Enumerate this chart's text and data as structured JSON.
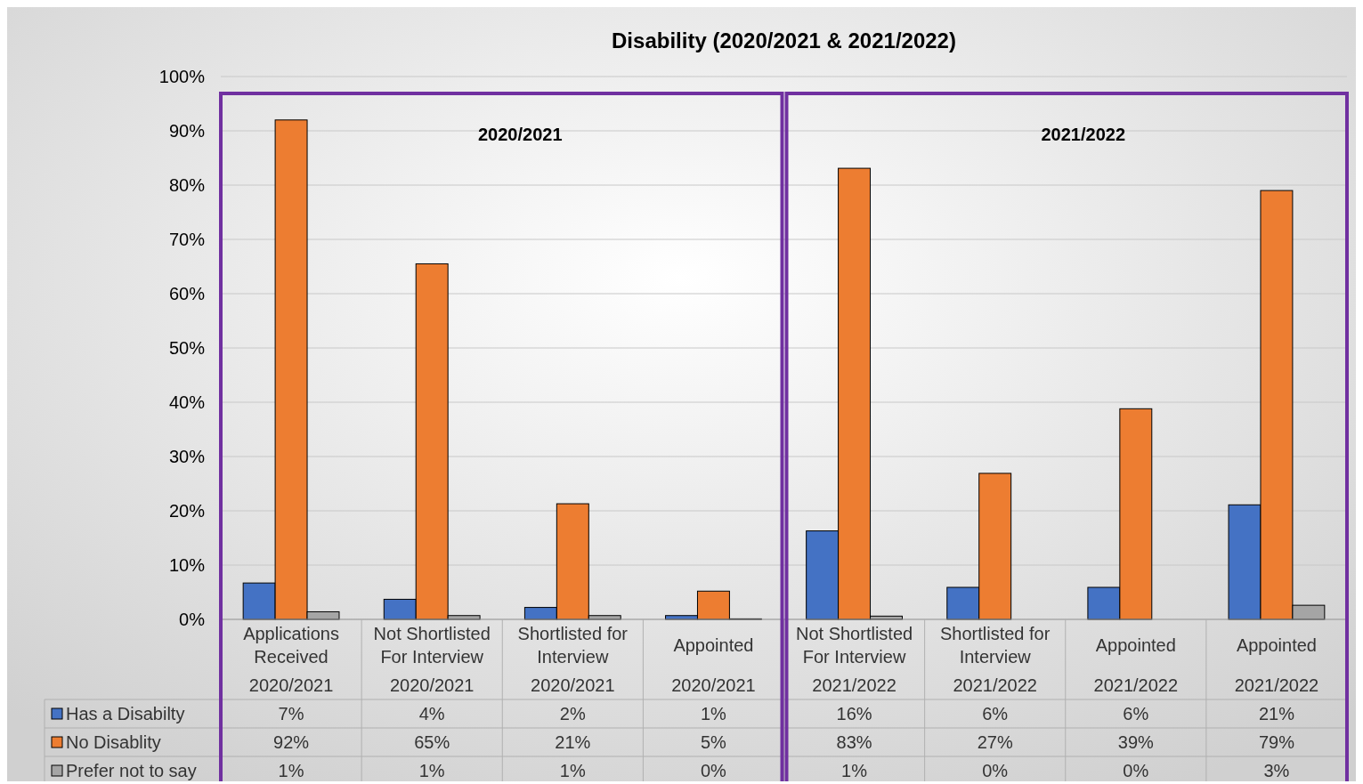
{
  "chart_data": {
    "type": "bar",
    "title": "Disability (2020/2021 & 2021/2022)",
    "categories": [
      "Applications Received 2020/2021",
      "Not Shortlisted For Interview 2020/2021",
      "Shortlisted for Interview 2020/2021",
      "Appointed 2020/2021",
      "Not Shortlisted For Interview 2021/2022",
      "Shortlisted for Interview 2021/2022",
      "Appointed 2021/2022",
      "Appointed 2021/2022"
    ],
    "series": [
      {
        "name": "Has a Disabilty",
        "color": "#4472c4",
        "values": [
          6.7,
          3.7,
          2.2,
          0.7,
          16.3,
          5.9,
          5.9,
          21.1
        ],
        "value_labels": [
          "7%",
          "4%",
          "2%",
          "1%",
          "16%",
          "6%",
          "6%",
          "21%"
        ]
      },
      {
        "name": "No Disablity",
        "color": "#ed7d31",
        "values": [
          92.0,
          65.5,
          21.3,
          5.2,
          83.1,
          26.9,
          38.8,
          79.0
        ],
        "value_labels": [
          "92%",
          "65%",
          "21%",
          "5%",
          "83%",
          "27%",
          "39%",
          "79%"
        ]
      },
      {
        "name": "Prefer not to say",
        "color": "#a5a5a5",
        "values": [
          1.4,
          0.7,
          0.7,
          0.1,
          0.6,
          0,
          0,
          2.6
        ],
        "value_labels": [
          "1%",
          "1%",
          "1%",
          "0%",
          "1%",
          "0%",
          "0%",
          "3%"
        ]
      }
    ],
    "ylim": [
      0,
      100
    ],
    "yticks": [
      {
        "value": 0,
        "label": "0%"
      },
      {
        "value": 10,
        "label": "10%"
      },
      {
        "value": 20,
        "label": "20%"
      },
      {
        "value": 30,
        "label": "30%"
      },
      {
        "value": 40,
        "label": "40%"
      },
      {
        "value": 50,
        "label": "50%"
      },
      {
        "value": 60,
        "label": "60%"
      },
      {
        "value": 70,
        "label": "70%"
      },
      {
        "value": 80,
        "label": "80%"
      },
      {
        "value": 90,
        "label": "90%"
      },
      {
        "value": 100,
        "label": "100%"
      }
    ],
    "grid": "y",
    "legend": "bottom",
    "annotations": [
      "2020/2021",
      "2021/2022"
    ]
  }
}
